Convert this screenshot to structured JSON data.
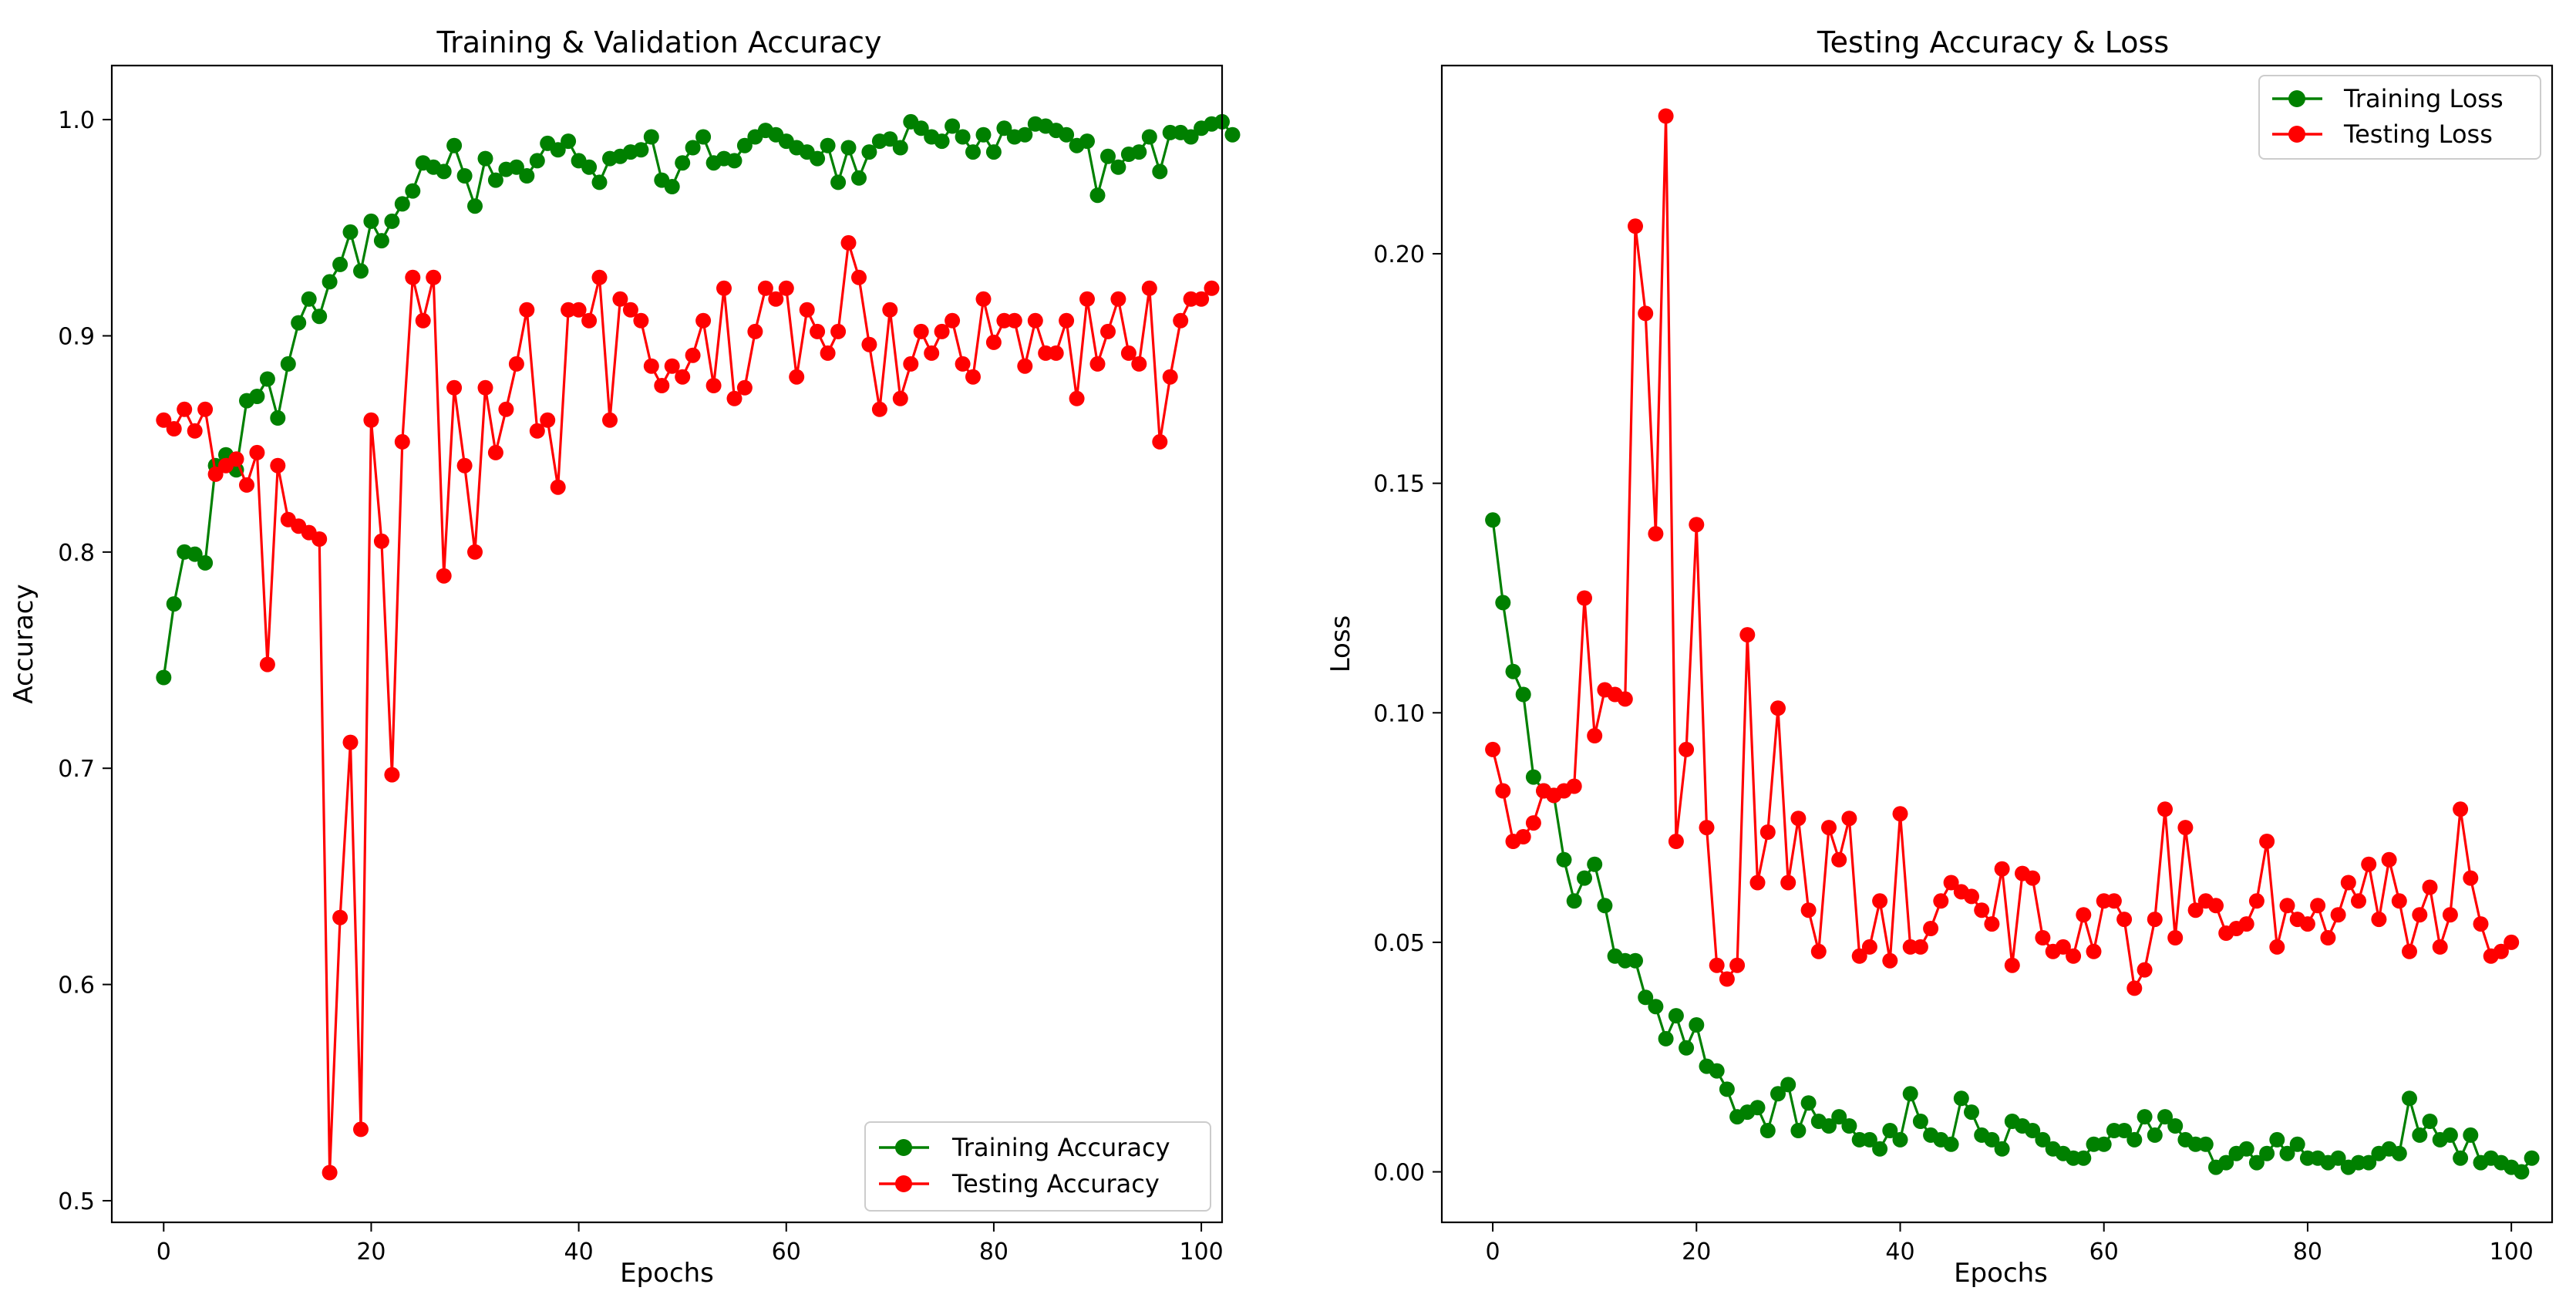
{
  "chart_data": [
    {
      "type": "line",
      "title": "Training & Validation Accuracy",
      "xlabel": "Epochs",
      "ylabel": "Accuracy",
      "xlim": [
        -5,
        102
      ],
      "ylim": [
        0.49,
        1.025
      ],
      "xticks": [
        0,
        20,
        40,
        60,
        80,
        100
      ],
      "xtick_labels": [
        "0",
        "20",
        "40",
        "60",
        "80",
        "100"
      ],
      "yticks": [
        0.5,
        0.6,
        0.7,
        0.8,
        0.9,
        1.0
      ],
      "ytick_labels": [
        "0.5",
        "0.6",
        "0.7",
        "0.8",
        "0.9",
        "1.0"
      ],
      "grid": false,
      "legend_position": "lower-right",
      "series": [
        {
          "name": "Training Accuracy",
          "color": "#008000",
          "marker": "circle",
          "values": [
            0.742,
            0.776,
            0.8,
            0.799,
            0.795,
            0.84,
            0.845,
            0.838,
            0.87,
            0.872,
            0.88,
            0.862,
            0.887,
            0.906,
            0.917,
            0.909,
            0.925,
            0.933,
            0.948,
            0.93,
            0.953,
            0.944,
            0.953,
            0.961,
            0.967,
            0.98,
            0.978,
            0.976,
            0.988,
            0.974,
            0.96,
            0.982,
            0.972,
            0.977,
            0.978,
            0.974,
            0.981,
            0.989,
            0.986,
            0.99,
            0.981,
            0.978,
            0.971,
            0.982,
            0.983,
            0.985,
            0.986,
            0.992,
            0.972,
            0.969,
            0.98,
            0.987,
            0.992,
            0.98,
            0.982,
            0.981,
            0.988,
            0.992,
            0.995,
            0.993,
            0.99,
            0.987,
            0.985,
            0.982,
            0.988,
            0.971,
            0.987,
            0.973,
            0.985,
            0.99,
            0.991,
            0.987,
            0.999,
            0.996,
            0.992,
            0.99,
            0.997,
            0.992,
            0.985,
            0.993,
            0.985,
            0.996,
            0.992,
            0.993,
            0.998,
            0.997,
            0.995,
            0.993,
            0.988,
            0.99,
            0.965,
            0.983,
            0.978,
            0.984,
            0.985,
            0.992,
            0.976,
            0.994,
            0.994,
            0.992,
            0.996,
            0.998,
            0.999,
            0.993
          ]
        },
        {
          "name": "Testing Accuracy",
          "color": "#ff0000",
          "marker": "circle",
          "values": [
            0.861,
            0.857,
            0.866,
            0.856,
            0.866,
            0.836,
            0.84,
            0.843,
            0.831,
            0.846,
            0.748,
            0.84,
            0.815,
            0.812,
            0.809,
            0.806,
            0.513,
            0.631,
            0.712,
            0.533,
            0.861,
            0.805,
            0.697,
            0.851,
            0.927,
            0.907,
            0.927,
            0.789,
            0.876,
            0.84,
            0.8,
            0.876,
            0.846,
            0.866,
            0.887,
            0.912,
            0.856,
            0.861,
            0.83,
            0.912,
            0.912,
            0.907,
            0.927,
            0.861,
            0.917,
            0.912,
            0.907,
            0.886,
            0.877,
            0.886,
            0.881,
            0.891,
            0.907,
            0.877,
            0.922,
            0.871,
            0.876,
            0.902,
            0.922,
            0.917,
            0.922,
            0.881,
            0.912,
            0.902,
            0.892,
            0.902,
            0.943,
            0.927,
            0.896,
            0.866,
            0.912,
            0.871,
            0.887,
            0.902,
            0.892,
            0.902,
            0.907,
            0.887,
            0.881,
            0.917,
            0.897,
            0.907,
            0.907,
            0.886,
            0.907,
            0.892,
            0.892,
            0.907,
            0.871,
            0.917,
            0.887,
            0.902,
            0.917,
            0.892,
            0.887,
            0.922,
            0.851,
            0.881,
            0.907,
            0.917,
            0.917,
            0.922
          ]
        }
      ]
    },
    {
      "type": "line",
      "title": "Testing Accuracy & Loss",
      "xlabel": "Epochs",
      "ylabel": "Loss",
      "xlim": [
        -5,
        104
      ],
      "ylim": [
        -0.011,
        0.241
      ],
      "xticks": [
        0,
        20,
        40,
        60,
        80,
        100
      ],
      "xtick_labels": [
        "0",
        "20",
        "40",
        "60",
        "80",
        "100"
      ],
      "yticks": [
        0.0,
        0.05,
        0.1,
        0.15,
        0.2
      ],
      "ytick_labels": [
        "0.00",
        "0.05",
        "0.10",
        "0.15",
        "0.20"
      ],
      "grid": false,
      "legend_position": "upper-right",
      "series": [
        {
          "name": "Training Loss",
          "color": "#008000",
          "marker": "circle",
          "values": [
            0.142,
            0.124,
            0.109,
            0.104,
            0.086,
            0.083,
            0.082,
            0.068,
            0.059,
            0.064,
            0.067,
            0.058,
            0.047,
            0.046,
            0.046,
            0.038,
            0.036,
            0.029,
            0.034,
            0.027,
            0.032,
            0.023,
            0.022,
            0.018,
            0.012,
            0.013,
            0.014,
            0.009,
            0.017,
            0.019,
            0.009,
            0.015,
            0.011,
            0.01,
            0.012,
            0.01,
            0.007,
            0.007,
            0.005,
            0.009,
            0.007,
            0.017,
            0.011,
            0.008,
            0.007,
            0.006,
            0.016,
            0.013,
            0.008,
            0.007,
            0.005,
            0.011,
            0.01,
            0.009,
            0.007,
            0.005,
            0.004,
            0.003,
            0.003,
            0.006,
            0.006,
            0.009,
            0.009,
            0.007,
            0.012,
            0.008,
            0.012,
            0.01,
            0.007,
            0.006,
            0.006,
            0.001,
            0.002,
            0.004,
            0.005,
            0.002,
            0.004,
            0.007,
            0.004,
            0.006,
            0.003,
            0.003,
            0.002,
            0.003,
            0.001,
            0.002,
            0.002,
            0.004,
            0.005,
            0.004,
            0.016,
            0.008,
            0.011,
            0.007,
            0.008,
            0.003,
            0.008,
            0.002,
            0.003,
            0.002,
            0.001,
            0.0,
            0.003
          ]
        },
        {
          "name": "Testing Loss",
          "color": "#ff0000",
          "marker": "circle",
          "values": [
            0.092,
            0.083,
            0.072,
            0.073,
            0.076,
            0.083,
            0.082,
            0.083,
            0.084,
            0.125,
            0.095,
            0.105,
            0.104,
            0.103,
            0.206,
            0.187,
            0.139,
            0.23,
            0.072,
            0.092,
            0.141,
            0.075,
            0.045,
            0.042,
            0.045,
            0.117,
            0.063,
            0.074,
            0.101,
            0.063,
            0.077,
            0.057,
            0.048,
            0.075,
            0.068,
            0.077,
            0.047,
            0.049,
            0.059,
            0.046,
            0.078,
            0.049,
            0.049,
            0.053,
            0.059,
            0.063,
            0.061,
            0.06,
            0.057,
            0.054,
            0.066,
            0.045,
            0.065,
            0.064,
            0.051,
            0.048,
            0.049,
            0.047,
            0.056,
            0.048,
            0.059,
            0.059,
            0.055,
            0.04,
            0.044,
            0.055,
            0.079,
            0.051,
            0.075,
            0.057,
            0.059,
            0.058,
            0.052,
            0.053,
            0.054,
            0.059,
            0.072,
            0.049,
            0.058,
            0.055,
            0.054,
            0.058,
            0.051,
            0.056,
            0.063,
            0.059,
            0.067,
            0.055,
            0.068,
            0.059,
            0.048,
            0.056,
            0.062,
            0.049,
            0.056,
            0.079,
            0.064,
            0.054,
            0.047,
            0.048,
            0.05
          ]
        }
      ]
    }
  ]
}
